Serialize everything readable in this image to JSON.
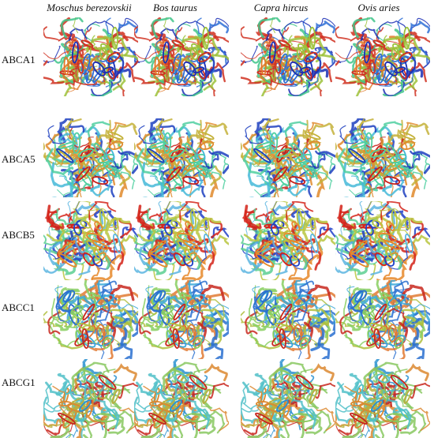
{
  "columns": [
    {
      "label": "Moschus berezovskii"
    },
    {
      "label": "Bos taurus"
    },
    {
      "label": "Capra hircus"
    },
    {
      "label": "Ovis aries"
    }
  ],
  "rows": [
    {
      "label": "ABCA1",
      "palette": [
        "#d03020",
        "#e07a2a",
        "#9cc23a",
        "#3fc48a",
        "#2e6fd6",
        "#1b2fb5",
        "#e9a0b5"
      ]
    },
    {
      "label": "ABCA5",
      "palette": [
        "#c8201a",
        "#e0892c",
        "#c4b23a",
        "#4fcfa0",
        "#45b8d8",
        "#1d3fc0",
        "#f0b0a0"
      ]
    },
    {
      "label": "ABCB5",
      "palette": [
        "#d42218",
        "#e6882a",
        "#b9c640",
        "#5ccf92",
        "#5cb5e0",
        "#2040c8",
        "#a5a0d8"
      ]
    },
    {
      "label": "ABCC1",
      "palette": [
        "#c8281e",
        "#e07a34",
        "#b0c040",
        "#88cf60",
        "#3aa8d8",
        "#2a70d0",
        "#9ad0f0"
      ]
    },
    {
      "label": "ABCG1",
      "palette": [
        "#c8241c",
        "#dc8830",
        "#b8b040",
        "#88c860",
        "#50c0c8",
        "#2a90d0",
        "#a0d8c0"
      ]
    }
  ]
}
